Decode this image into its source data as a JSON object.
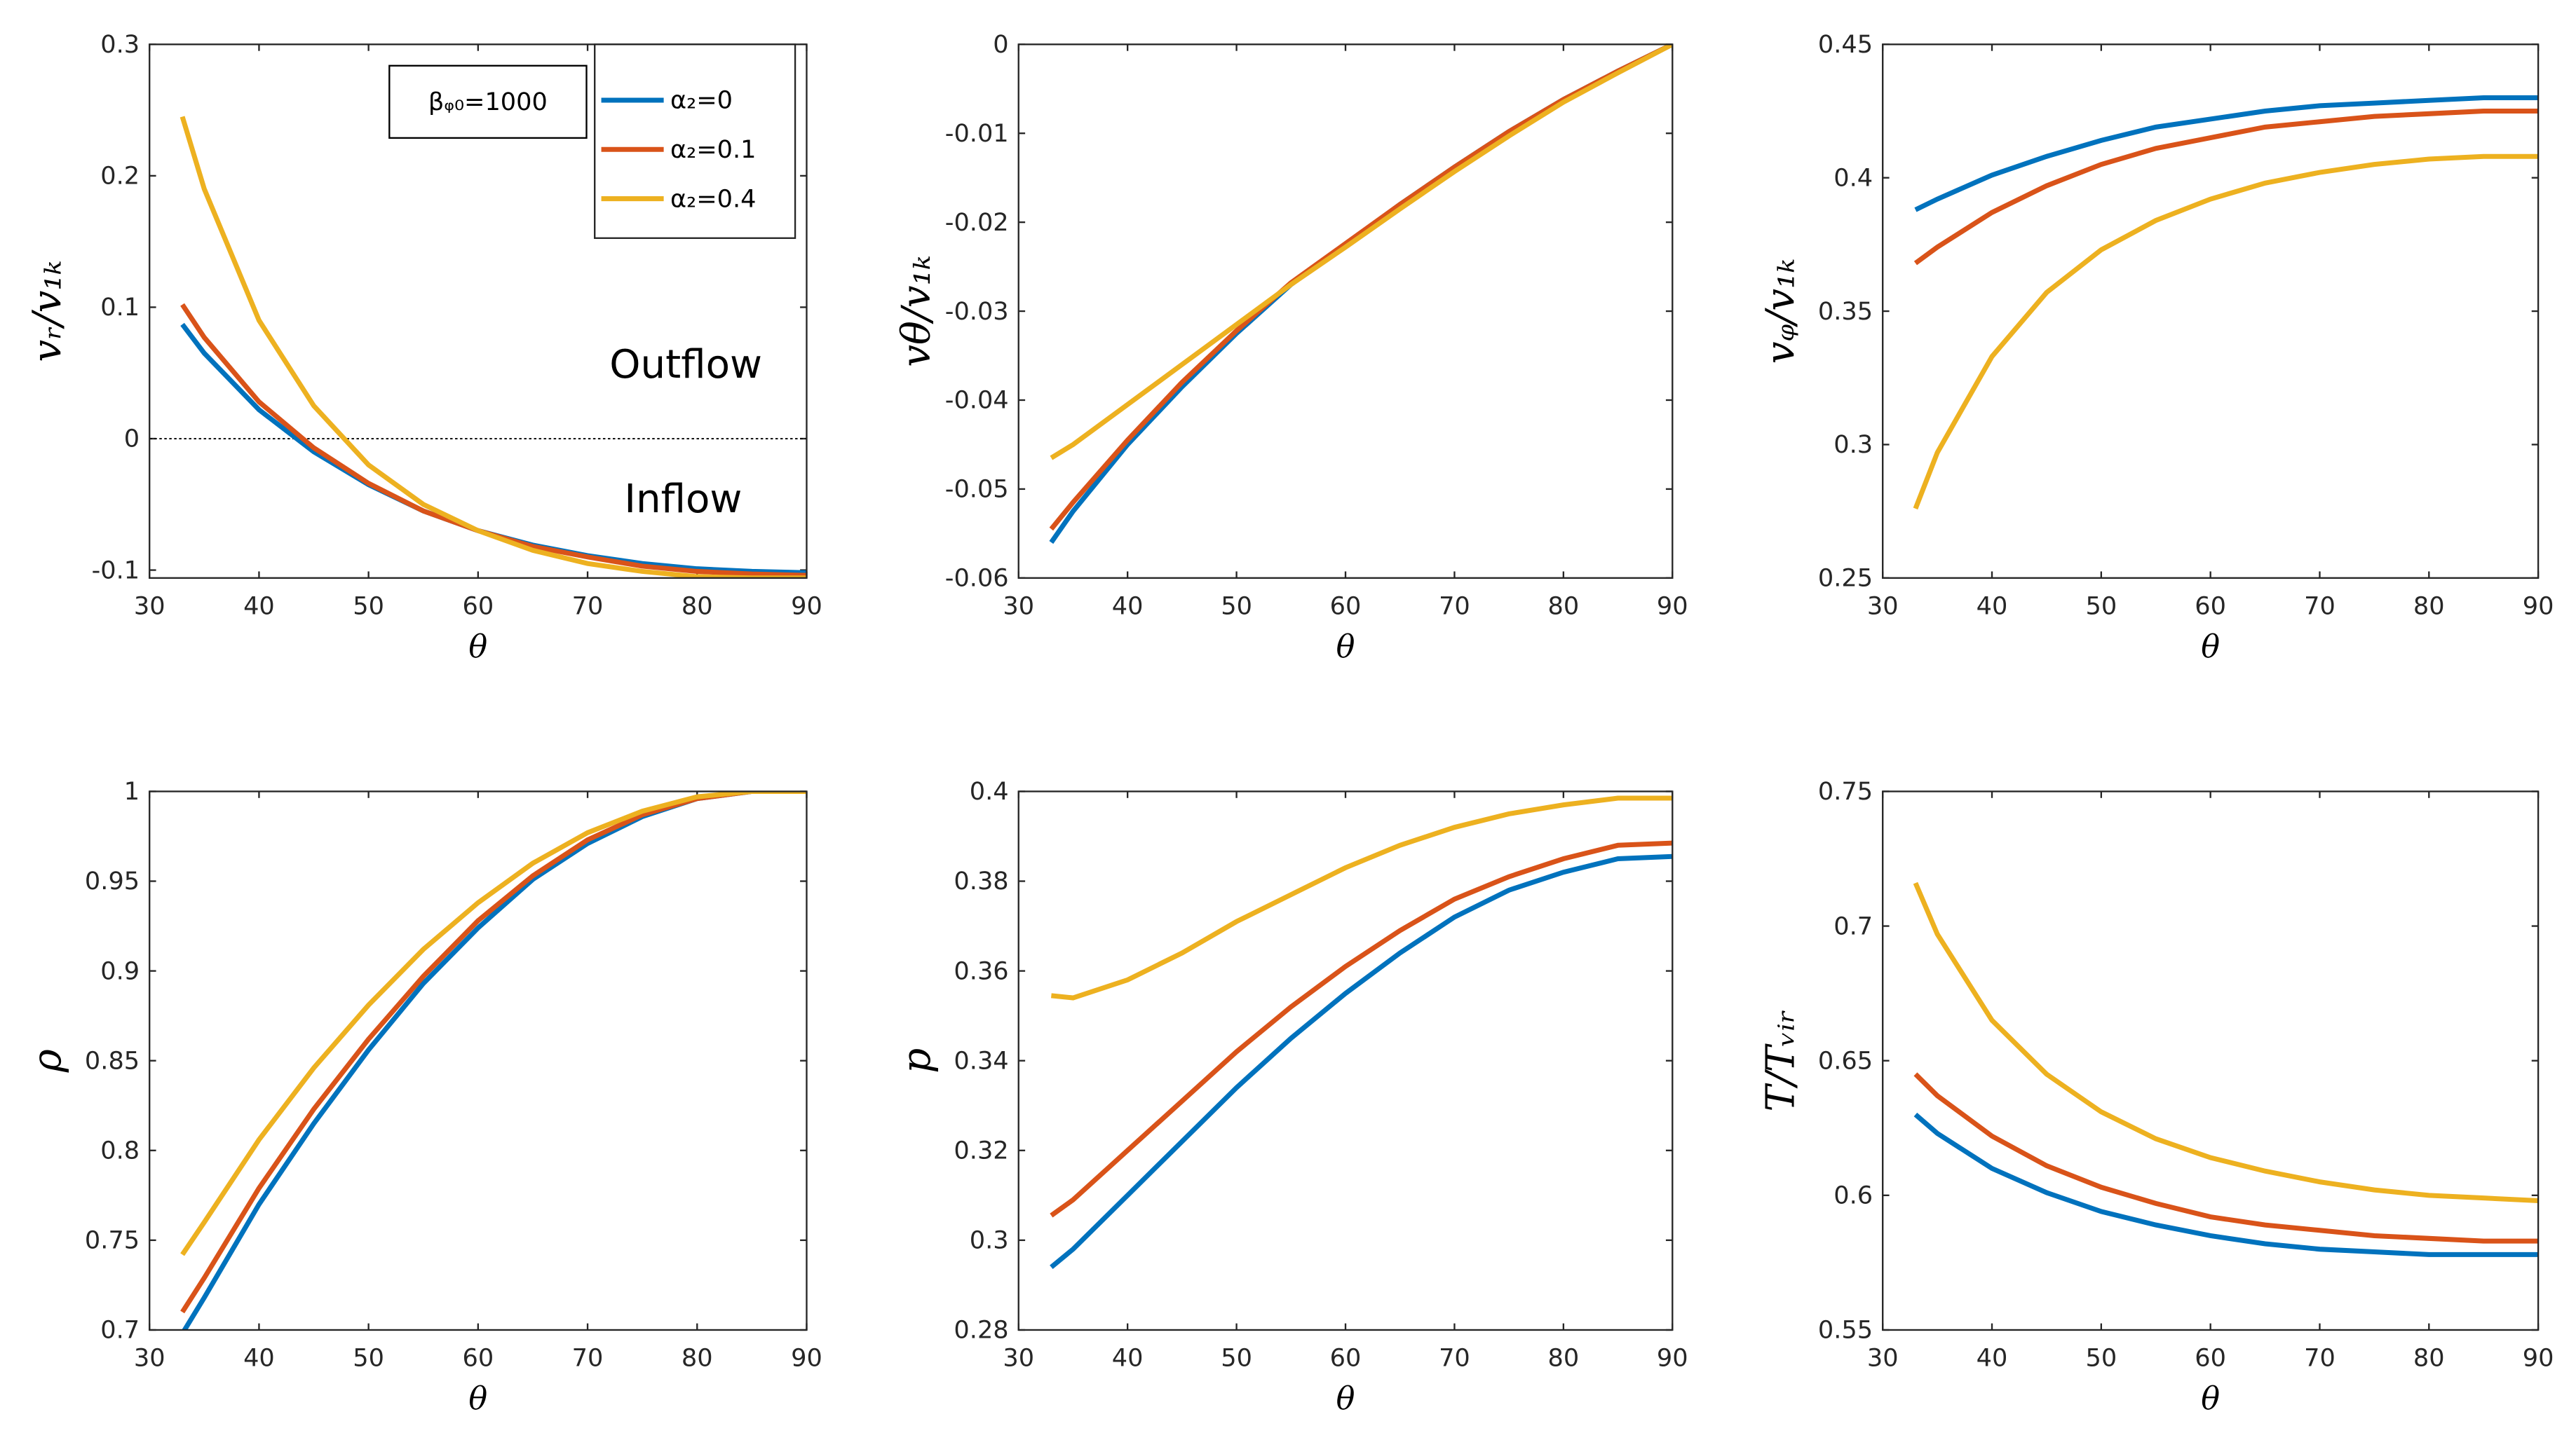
{
  "chart_data": [
    {
      "type": "line",
      "xlabel": "θ",
      "ylabel": "vᵣ/v₁ₖ",
      "x": [
        33,
        35,
        40,
        45,
        50,
        55,
        60,
        65,
        70,
        75,
        80,
        85,
        90
      ],
      "series": [
        {
          "name": "α₂=0",
          "color": "#0072bd",
          "values": [
            0.087,
            0.065,
            0.022,
            -0.01,
            -0.035,
            -0.055,
            -0.07,
            -0.081,
            -0.089,
            -0.095,
            -0.099,
            -0.101,
            -0.102
          ]
        },
        {
          "name": "α₂=0.1",
          "color": "#d95319",
          "values": [
            0.102,
            0.077,
            0.028,
            -0.007,
            -0.034,
            -0.055,
            -0.07,
            -0.082,
            -0.09,
            -0.097,
            -0.101,
            -0.103,
            -0.104
          ]
        },
        {
          "name": "α₂=0.4",
          "color": "#edb120",
          "values": [
            0.245,
            0.19,
            0.09,
            0.025,
            -0.02,
            -0.05,
            -0.07,
            -0.085,
            -0.095,
            -0.101,
            -0.105,
            -0.106,
            -0.106
          ]
        }
      ],
      "xlim": [
        30,
        90
      ],
      "xticks": [
        30,
        40,
        50,
        60,
        70,
        80,
        90
      ],
      "ylim": [
        -0.106,
        0.3
      ],
      "yticks": [
        -0.1,
        0,
        0.1,
        0.2,
        0.3
      ],
      "legend": "northeast",
      "zero_line": true,
      "annotations": [
        "Outflow",
        "Inflow",
        "βᵩ₀=1000"
      ]
    },
    {
      "type": "line",
      "xlabel": "θ",
      "ylabel": "vθ/v₁ₖ",
      "x": [
        33,
        35,
        40,
        45,
        50,
        55,
        60,
        65,
        70,
        75,
        80,
        85,
        90
      ],
      "series": [
        {
          "color": "#0072bd",
          "values": [
            -0.056,
            -0.0525,
            -0.045,
            -0.0385,
            -0.0325,
            -0.027,
            -0.0225,
            -0.018,
            -0.0138,
            -0.0098,
            -0.0062,
            -0.003,
            0
          ]
        },
        {
          "color": "#d95319",
          "values": [
            -0.0545,
            -0.0515,
            -0.0445,
            -0.038,
            -0.0322,
            -0.0268,
            -0.0224,
            -0.018,
            -0.0138,
            -0.0098,
            -0.0062,
            -0.003,
            0
          ]
        },
        {
          "color": "#edb120",
          "values": [
            -0.0465,
            -0.045,
            -0.0405,
            -0.036,
            -0.0315,
            -0.027,
            -0.0228,
            -0.0185,
            -0.0143,
            -0.0103,
            -0.0065,
            -0.0032,
            0
          ]
        }
      ],
      "xlim": [
        30,
        90
      ],
      "xticks": [
        30,
        40,
        50,
        60,
        70,
        80,
        90
      ],
      "ylim": [
        -0.06,
        0
      ],
      "yticks": [
        -0.06,
        -0.05,
        -0.04,
        -0.03,
        -0.02,
        -0.01,
        0
      ]
    },
    {
      "type": "line",
      "xlabel": "θ",
      "ylabel": "vᵩ/v₁ₖ",
      "x": [
        33,
        35,
        40,
        45,
        50,
        55,
        60,
        65,
        70,
        75,
        80,
        85,
        90
      ],
      "series": [
        {
          "color": "#0072bd",
          "values": [
            0.388,
            0.392,
            0.401,
            0.408,
            0.414,
            0.419,
            0.422,
            0.425,
            0.427,
            0.428,
            0.429,
            0.43,
            0.43
          ]
        },
        {
          "color": "#d95319",
          "values": [
            0.368,
            0.374,
            0.387,
            0.397,
            0.405,
            0.411,
            0.415,
            0.419,
            0.421,
            0.423,
            0.424,
            0.425,
            0.425
          ]
        },
        {
          "color": "#edb120",
          "values": [
            0.276,
            0.297,
            0.333,
            0.357,
            0.373,
            0.384,
            0.392,
            0.398,
            0.402,
            0.405,
            0.407,
            0.408,
            0.408
          ]
        }
      ],
      "xlim": [
        30,
        90
      ],
      "xticks": [
        30,
        40,
        50,
        60,
        70,
        80,
        90
      ],
      "ylim": [
        0.25,
        0.45
      ],
      "yticks": [
        0.25,
        0.3,
        0.35,
        0.4,
        0.45
      ]
    },
    {
      "type": "line",
      "xlabel": "θ",
      "ylabel": "ρ",
      "x": [
        33,
        35,
        40,
        45,
        50,
        55,
        60,
        65,
        70,
        75,
        80,
        85,
        90
      ],
      "series": [
        {
          "color": "#0072bd",
          "values": [
            0.698,
            0.718,
            0.77,
            0.815,
            0.856,
            0.893,
            0.924,
            0.951,
            0.971,
            0.986,
            0.996,
            1.0,
            1.0
          ]
        },
        {
          "color": "#d95319",
          "values": [
            0.71,
            0.729,
            0.779,
            0.823,
            0.862,
            0.897,
            0.928,
            0.953,
            0.973,
            0.987,
            0.996,
            1.0,
            1.0
          ]
        },
        {
          "color": "#edb120",
          "values": [
            0.742,
            0.76,
            0.806,
            0.846,
            0.881,
            0.912,
            0.938,
            0.96,
            0.977,
            0.989,
            0.997,
            1.0,
            1.0
          ]
        }
      ],
      "xlim": [
        30,
        90
      ],
      "xticks": [
        30,
        40,
        50,
        60,
        70,
        80,
        90
      ],
      "ylim": [
        0.7,
        1
      ],
      "yticks": [
        0.7,
        0.75,
        0.8,
        0.85,
        0.9,
        0.95,
        1
      ]
    },
    {
      "type": "line",
      "xlabel": "θ",
      "ylabel": "p",
      "x": [
        33,
        35,
        40,
        45,
        50,
        55,
        60,
        65,
        70,
        75,
        80,
        85,
        90
      ],
      "series": [
        {
          "color": "#0072bd",
          "values": [
            0.294,
            0.298,
            0.31,
            0.322,
            0.334,
            0.345,
            0.355,
            0.364,
            0.372,
            0.378,
            0.382,
            0.385,
            0.3855
          ]
        },
        {
          "color": "#d95319",
          "values": [
            0.3055,
            0.309,
            0.32,
            0.331,
            0.342,
            0.352,
            0.361,
            0.369,
            0.376,
            0.381,
            0.385,
            0.388,
            0.3885
          ]
        },
        {
          "color": "#edb120",
          "values": [
            0.3545,
            0.354,
            0.358,
            0.364,
            0.371,
            0.377,
            0.383,
            0.388,
            0.392,
            0.395,
            0.397,
            0.3985,
            0.3985
          ]
        }
      ],
      "xlim": [
        30,
        90
      ],
      "xticks": [
        30,
        40,
        50,
        60,
        70,
        80,
        90
      ],
      "ylim": [
        0.28,
        0.4
      ],
      "yticks": [
        0.28,
        0.3,
        0.32,
        0.34,
        0.36,
        0.38,
        0.4
      ]
    },
    {
      "type": "line",
      "xlabel": "θ",
      "ylabel": "T/Tᵥᵢᵣ",
      "x": [
        33,
        35,
        40,
        45,
        50,
        55,
        60,
        65,
        70,
        75,
        80,
        85,
        90
      ],
      "series": [
        {
          "color": "#0072bd",
          "values": [
            0.63,
            0.623,
            0.61,
            0.601,
            0.594,
            0.589,
            0.585,
            0.582,
            0.58,
            0.579,
            0.578,
            0.578,
            0.578
          ]
        },
        {
          "color": "#d95319",
          "values": [
            0.645,
            0.637,
            0.622,
            0.611,
            0.603,
            0.597,
            0.592,
            0.589,
            0.587,
            0.585,
            0.584,
            0.583,
            0.583
          ]
        },
        {
          "color": "#edb120",
          "values": [
            0.716,
            0.697,
            0.665,
            0.645,
            0.631,
            0.621,
            0.614,
            0.609,
            0.605,
            0.602,
            0.6,
            0.599,
            0.598
          ]
        }
      ],
      "xlim": [
        30,
        90
      ],
      "xticks": [
        30,
        40,
        50,
        60,
        70,
        80,
        90
      ],
      "ylim": [
        0.55,
        0.75
      ],
      "yticks": [
        0.55,
        0.6,
        0.65,
        0.7,
        0.75
      ]
    }
  ]
}
